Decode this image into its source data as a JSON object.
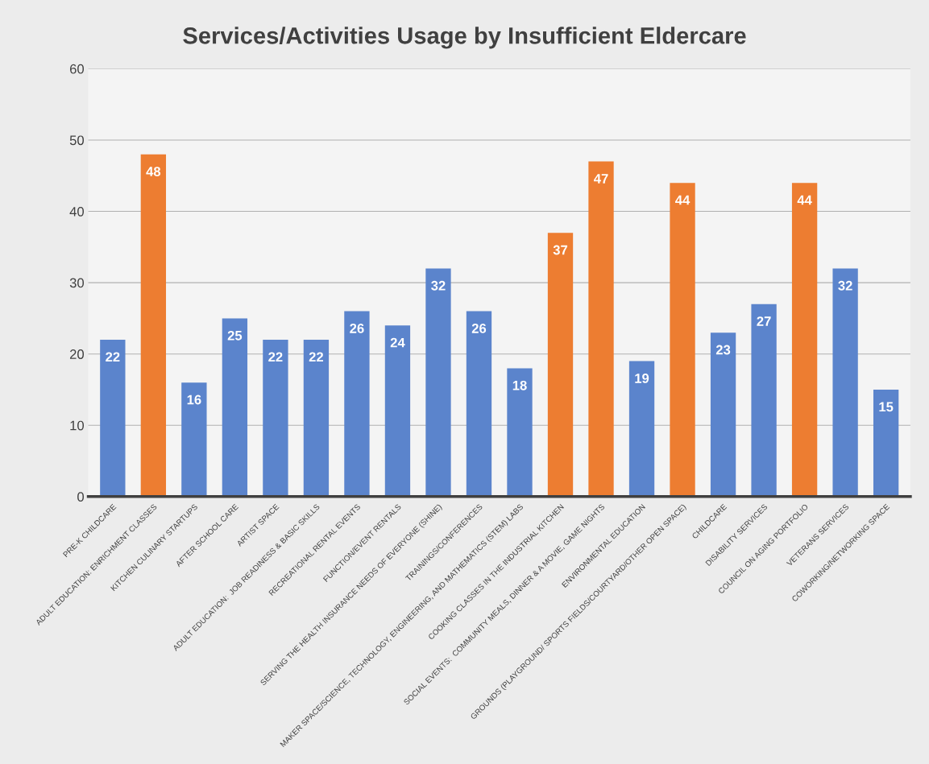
{
  "chart_data": {
    "type": "bar",
    "title": "Services/Activities Usage by Insufficient Eldercare",
    "categories": [
      "PRE-K CHILDCARE",
      "ADULT EDUCATION: ENRICHMENT CLASSES",
      "KITCHEN CULINARY STARTUPS",
      "AFTER SCHOOL CARE",
      "ARTIST SPACE",
      "ADULT EDUCATION:  JOB READINESS & BASIC SKILLS",
      "RECREATIONAL RENTAL EVENTS",
      "FUNCTION/EVENT RENTALS",
      "SERVING THE HEALTH INSURANCE NEEDS OF EVERYONE (SHINE)",
      "TRAININGS/CONFERENCES",
      "MAKER SPACE/SCIENCE, TECHNOLOGY, ENGINEERING, AND MATHEMATICS (STEM) LABS",
      "COOKING CLASSES IN THE INDUSTRIAL KITCHEN",
      "SOCIAL EVENTS:  COMMUNITY MEALS, DINNER & A MOVIE, GAME NIGHTS",
      "ENVIRONMENTAL EDUCATION",
      "GROUNDS (PLAYGROUND/ SPORTS FIELDS/COURTYARD/OTHER OPEN SPACE)",
      "CHILDCARE",
      "DISABILITY SERVICES",
      "COUNCIL ON AGING PORTFOLIO",
      "VETERANS SERVICES",
      "COWORKING/NETWORKING SPACE"
    ],
    "values": [
      22,
      48,
      16,
      25,
      22,
      22,
      26,
      24,
      32,
      26,
      18,
      37,
      47,
      19,
      44,
      23,
      27,
      44,
      32,
      15
    ],
    "colors": [
      "#5b84cc",
      "#ed7d31",
      "#5b84cc",
      "#5b84cc",
      "#5b84cc",
      "#5b84cc",
      "#5b84cc",
      "#5b84cc",
      "#5b84cc",
      "#5b84cc",
      "#5b84cc",
      "#ed7d31",
      "#ed7d31",
      "#5b84cc",
      "#ed7d31",
      "#5b84cc",
      "#5b84cc",
      "#ed7d31",
      "#5b84cc",
      "#5b84cc"
    ],
    "ylim": [
      0,
      60
    ],
    "yticks": [
      0,
      10,
      20,
      30,
      40,
      50,
      60
    ],
    "grid": "y",
    "data_labels": true
  }
}
